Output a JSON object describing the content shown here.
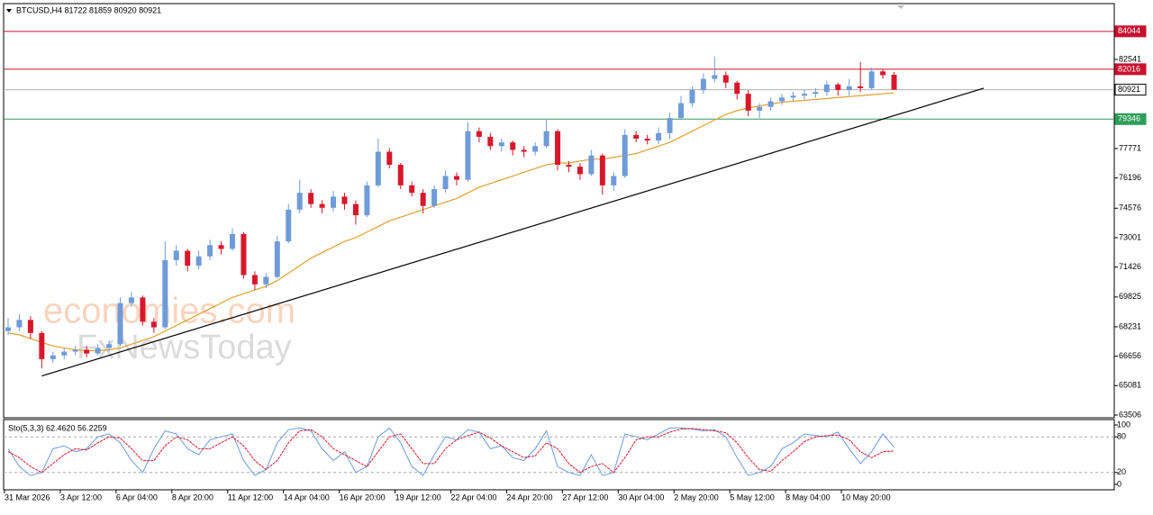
{
  "chart_data": [
    {
      "type": "candlestick",
      "title": "BTCUSD,H4  81722 81859 80920 80921",
      "up_color": "#6f9bd8",
      "down_color": "#d9172b",
      "open": [
        68000,
        68200,
        68600,
        67900,
        66500,
        66700,
        66900,
        67000,
        66800,
        67100,
        67300,
        69500,
        69800,
        68500,
        68200,
        71800,
        72300,
        71500,
        72000,
        72600,
        72400,
        73200,
        71000,
        70500,
        70900,
        72800,
        74500,
        75400,
        74800,
        74600,
        75200,
        74800,
        74200,
        75800,
        77600,
        76900,
        75800,
        75400,
        74700,
        75600,
        76300,
        76100,
        78700,
        78400,
        77900,
        78100,
        77700,
        77600,
        77900,
        78700,
        76900,
        76800,
        76400,
        77400,
        75800,
        76300,
        78500,
        78300,
        78200,
        78600,
        79400,
        80200,
        80900,
        81500,
        81700,
        81300,
        80700,
        79800,
        80000,
        80300,
        80500,
        80600,
        80700,
        80800,
        81200,
        80900,
        81100,
        81000,
        81900,
        81722
      ],
      "high": [
        68700,
        68900,
        68800,
        68000,
        66900,
        67100,
        67200,
        67200,
        67300,
        67500,
        69800,
        70100,
        69900,
        68700,
        72800,
        72600,
        72400,
        72300,
        72900,
        72800,
        73500,
        73300,
        71200,
        71100,
        73100,
        74800,
        76100,
        75600,
        75000,
        75500,
        75400,
        75000,
        76000,
        78300,
        77800,
        77000,
        76000,
        75600,
        75800,
        76600,
        76500,
        79200,
        78900,
        78600,
        78300,
        78200,
        77900,
        78100,
        79300,
        78800,
        77100,
        77000,
        77700,
        77500,
        76500,
        78800,
        78700,
        78500,
        78900,
        79700,
        80600,
        81100,
        81800,
        82700,
        81900,
        81400,
        80900,
        80200,
        80500,
        80700,
        80800,
        80900,
        81000,
        81400,
        81300,
        81500,
        82400,
        82100,
        82000,
        81859
      ],
      "low": [
        67800,
        68000,
        67600,
        66000,
        66300,
        66500,
        66700,
        66600,
        66700,
        66900,
        67200,
        69300,
        68300,
        67900,
        68100,
        71500,
        71200,
        71300,
        71800,
        72100,
        72300,
        70800,
        70200,
        70300,
        70800,
        72700,
        74300,
        74600,
        74300,
        74400,
        74500,
        73700,
        74100,
        75700,
        76700,
        75600,
        75200,
        74300,
        74600,
        75400,
        75800,
        76000,
        78100,
        77700,
        77600,
        77400,
        77300,
        77400,
        77800,
        76600,
        76500,
        76100,
        76300,
        75300,
        75500,
        76200,
        78100,
        78000,
        78000,
        78300,
        79300,
        80000,
        80700,
        81300,
        81000,
        80400,
        79500,
        79400,
        79800,
        80100,
        80300,
        80400,
        80500,
        80600,
        80600,
        80600,
        80800,
        80900,
        81500,
        80920
      ],
      "close": [
        68200,
        68600,
        67900,
        66500,
        66700,
        66900,
        67000,
        66800,
        67100,
        67300,
        69500,
        69800,
        68500,
        68200,
        71800,
        72300,
        71500,
        72000,
        72600,
        72400,
        73200,
        71000,
        70500,
        70900,
        72800,
        74500,
        75400,
        74800,
        74600,
        75200,
        74800,
        74200,
        75800,
        77600,
        76900,
        75800,
        75400,
        74700,
        75600,
        76300,
        76100,
        78700,
        78400,
        77900,
        78100,
        77700,
        77600,
        77900,
        78700,
        76900,
        76800,
        76400,
        77400,
        75800,
        76300,
        78500,
        78300,
        78200,
        78600,
        79400,
        80200,
        80900,
        81500,
        81700,
        81300,
        80700,
        79800,
        80000,
        80300,
        80500,
        80600,
        80700,
        80800,
        81200,
        80900,
        81100,
        81000,
        81900,
        81700,
        80921
      ],
      "ma": {
        "color": "#e0a030",
        "values": [
          67900,
          67800,
          67600,
          67400,
          67200,
          67100,
          67000,
          66950,
          66950,
          67000,
          67100,
          67300,
          67500,
          67700,
          68000,
          68300,
          68600,
          68900,
          69200,
          69500,
          69800,
          70000,
          70200,
          70400,
          70700,
          71100,
          71500,
          71900,
          72200,
          72500,
          72800,
          73000,
          73300,
          73600,
          73900,
          74100,
          74300,
          74500,
          74700,
          74900,
          75100,
          75400,
          75700,
          75900,
          76100,
          76300,
          76500,
          76700,
          76900,
          77000,
          77000,
          77100,
          77200,
          77200,
          77300,
          77400,
          77500,
          77700,
          77900,
          78100,
          78400,
          78700,
          79000,
          79300,
          79600,
          79800,
          79950,
          80050,
          80150,
          80250,
          80300,
          80350,
          80400,
          80450,
          80500,
          80550,
          80600,
          80650,
          80700,
          80750
        ]
      },
      "trendline": {
        "color": "#000000",
        "x": [
          3,
          87
        ],
        "y": [
          65600,
          81000
        ]
      },
      "levels": [
        {
          "value": 84044,
          "color": "#c8102e"
        },
        {
          "value": 82016,
          "color": "#c8102e"
        },
        {
          "value": 80921,
          "color": "#b0b0b0"
        },
        {
          "value": 79346,
          "color": "#2e9e5a"
        }
      ],
      "ylim": [
        63361,
        85529
      ],
      "yticks": [
        63506,
        65081,
        66656,
        68231,
        69825,
        71426,
        73001,
        74576,
        76196,
        77771,
        82541
      ],
      "xticks": [
        "31 Mar 2026",
        "3 Apr 12:00",
        "6 Apr 04:00",
        "8 Apr 20:00",
        "11 Apr 12:00",
        "14 Apr 04:00",
        "16 Apr 20:00",
        "19 Apr 12:00",
        "22 Apr 04:00",
        "24 Apr 20:00",
        "27 Apr 12:00",
        "30 Apr 04:00",
        "2 May 20:00",
        "5 May 12:00",
        "8 May 04:00",
        "10 May 20:00"
      ],
      "watermark": [
        "economies.com",
        "FxNewsToday"
      ]
    },
    {
      "type": "line",
      "title": "Sto(5,3,3) 62.4620 56.2259",
      "series": [
        {
          "color": "#6c9be0",
          "values": [
            60,
            30,
            15,
            20,
            60,
            65,
            55,
            60,
            80,
            85,
            70,
            40,
            20,
            60,
            90,
            85,
            60,
            50,
            75,
            80,
            85,
            40,
            15,
            25,
            70,
            92,
            95,
            90,
            60,
            40,
            55,
            20,
            30,
            80,
            95,
            70,
            30,
            15,
            50,
            80,
            75,
            92,
            88,
            60,
            65,
            45,
            40,
            60,
            90,
            30,
            20,
            15,
            50,
            15,
            20,
            85,
            80,
            75,
            85,
            95,
            95,
            93,
            90,
            92,
            80,
            45,
            15,
            20,
            30,
            60,
            70,
            85,
            82,
            80,
            88,
            60,
            35,
            55,
            85,
            62.462
          ]
        },
        {
          "color": "#d9172b",
          "values": [
            55,
            45,
            30,
            20,
            35,
            50,
            60,
            58,
            70,
            80,
            78,
            60,
            40,
            40,
            65,
            80,
            75,
            60,
            60,
            70,
            80,
            65,
            40,
            25,
            40,
            70,
            90,
            92,
            80,
            60,
            50,
            40,
            30,
            55,
            80,
            85,
            60,
            35,
            35,
            60,
            75,
            82,
            88,
            78,
            65,
            55,
            45,
            48,
            70,
            60,
            35,
            20,
            30,
            35,
            20,
            45,
            75,
            80,
            80,
            88,
            93,
            94,
            92,
            90,
            87,
            70,
            45,
            25,
            22,
            40,
            55,
            72,
            80,
            82,
            83,
            75,
            55,
            45,
            55,
            56.2259
          ]
        }
      ],
      "ylim": [
        0,
        100
      ],
      "yticks": [
        0,
        20,
        80,
        100
      ],
      "levels": [
        20,
        80
      ]
    }
  ]
}
